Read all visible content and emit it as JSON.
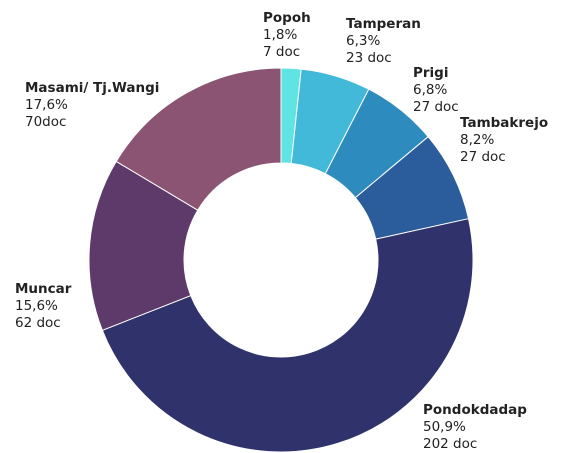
{
  "chart_data": {
    "type": "donut",
    "categories": [
      "Popoh",
      "Tamperan",
      "Prigi",
      "Tambakrejo",
      "Pondokdadap",
      "Muncar",
      "Masami/ Tj.Wangi"
    ],
    "values": [
      1.8,
      6.3,
      6.8,
      8.2,
      50.9,
      15.6,
      17.6
    ],
    "value_labels": [
      "1,8%",
      "6,3%",
      "6,8%",
      "8,2%",
      "50,9%",
      "15,6%",
      "17,6%"
    ],
    "counts": [
      7,
      23,
      27,
      27,
      202,
      62,
      70
    ],
    "count_labels": [
      "7 doc",
      "23 doc",
      "27 doc",
      "27 doc",
      "202 doc",
      "62 doc",
      "70doc"
    ],
    "colors": [
      "#5fe3e3",
      "#43b9d9",
      "#2d8bbd",
      "#2b5c9c",
      "#30336b",
      "#5e3a6b",
      "#8a5472"
    ]
  }
}
